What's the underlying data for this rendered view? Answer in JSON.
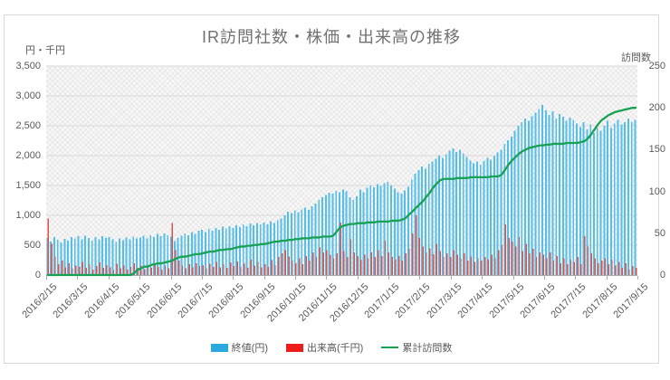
{
  "title": "IR訪問社数・株価・出来高の推移",
  "left_axis": {
    "label": "円・千円",
    "ticks": [
      "0",
      "500",
      "1,000",
      "1,500",
      "2,000",
      "2,500",
      "3,000",
      "3,500"
    ],
    "min": 0,
    "max": 3500,
    "step": 500
  },
  "right_axis": {
    "label": "訪問数",
    "ticks": [
      "0",
      "50",
      "100",
      "150",
      "200",
      "250"
    ],
    "min": 0,
    "max": 250,
    "step": 50
  },
  "legend": {
    "items": [
      {
        "label": "終値(円)",
        "color": "#2aa9e0",
        "type": "bar"
      },
      {
        "label": "出来高(千円)",
        "color": "#ee1c1c",
        "type": "bar"
      },
      {
        "label": "累計訪問数",
        "color": "#17a253",
        "type": "line"
      }
    ]
  },
  "colors": {
    "close_bar": "#55bee9",
    "volume_bar": "#d9534e",
    "visits_line": "#17a253",
    "gridline": "#d9d9d9",
    "axis_text": "#595959",
    "title_text": "#717171"
  },
  "chart_data": {
    "type": "combo",
    "title": "IR訪問社数・株価・出来高の推移",
    "x_tick_labels": [
      "2016/2/15",
      "2016/3/15",
      "2016/4/15",
      "2016/5/15",
      "2016/6/15",
      "2016/7/15",
      "2016/8/15",
      "2016/9/15",
      "2016/10/15",
      "2016/11/15",
      "2016/12/15",
      "2017/1/15",
      "2017/2/15",
      "2017/3/15",
      "2017/4/15",
      "2017/5/15",
      "2017/6/15",
      "2017/7/15",
      "2017/8/15",
      "2017/9/15"
    ],
    "left_range": [
      0,
      3500
    ],
    "right_range": [
      0,
      250
    ],
    "grid": "horizontal-major-left-axis",
    "legend_position": "bottom",
    "series": [
      {
        "name": "終値(円)",
        "type": "bar",
        "axis": "left",
        "values": [
          620,
          560,
          640,
          590,
          545,
          605,
          575,
          640,
          615,
          650,
          600,
          660,
          620,
          575,
          635,
          600,
          655,
          625,
          640,
          595,
          555,
          610,
          580,
          630,
          600,
          645,
          615,
          630,
          660,
          615,
          670,
          640,
          690,
          655,
          700,
          670,
          645,
          565,
          625,
          660,
          700,
          665,
          720,
          690,
          740,
          760,
          720,
          775,
          745,
          790,
          760,
          810,
          780,
          820,
          790,
          830,
          805,
          850,
          820,
          860,
          835,
          875,
          845,
          880,
          850,
          900,
          870,
          920,
          950,
          1000,
          1060,
          1040,
          1080,
          1050,
          1100,
          1130,
          1090,
          1150,
          1200,
          1260,
          1300,
          1340,
          1380,
          1360,
          1410,
          1390,
          1430,
          1400,
          1300,
          1260,
          1320,
          1430,
          1390,
          1460,
          1500,
          1470,
          1520,
          1490,
          1540,
          1560,
          1500,
          1450,
          1390,
          1360,
          1420,
          1480,
          1600,
          1700,
          1760,
          1820,
          1780,
          1860,
          1900,
          1950,
          2000,
          1960,
          2020,
          2080,
          2120,
          2060,
          2100,
          2040,
          1980,
          1920,
          1870,
          1900,
          1850,
          1910,
          1960,
          1930,
          1990,
          2050,
          2100,
          2200,
          2260,
          2320,
          2420,
          2500,
          2560,
          2620,
          2580,
          2660,
          2720,
          2780,
          2850,
          2760,
          2680,
          2740,
          2620,
          2700,
          2650,
          2580,
          2640,
          2600,
          2540,
          2480,
          2560,
          2440,
          2520,
          2380,
          2460,
          2420,
          2500,
          2580,
          2460,
          2540,
          2600,
          2520,
          2560,
          2620,
          2560,
          2600
        ]
      },
      {
        "name": "出来高(千円)",
        "type": "bar",
        "axis": "left",
        "values": [
          950,
          520,
          310,
          180,
          240,
          130,
          200,
          110,
          160,
          140,
          220,
          120,
          180,
          90,
          150,
          210,
          120,
          170,
          130,
          80,
          190,
          110,
          160,
          90,
          140,
          200,
          120,
          160,
          100,
          170,
          120,
          200,
          140,
          90,
          160,
          110,
          870,
          420,
          240,
          160,
          110,
          180,
          130,
          200,
          150,
          170,
          110,
          190,
          140,
          220,
          130,
          180,
          120,
          210,
          150,
          230,
          140,
          190,
          120,
          260,
          160,
          220,
          130,
          180,
          140,
          250,
          170,
          300,
          360,
          420,
          310,
          240,
          200,
          280,
          180,
          320,
          240,
          380,
          300,
          460,
          380,
          420,
          340,
          280,
          360,
          880,
          400,
          300,
          600,
          380,
          320,
          260,
          340,
          280,
          380,
          300,
          420,
          320,
          575,
          380,
          300,
          260,
          320,
          240,
          360,
          440,
          700,
          1000,
          620,
          480,
          380,
          450,
          350,
          520,
          400,
          300,
          360,
          300,
          420,
          340,
          280,
          360,
          240,
          310,
          220,
          280,
          240,
          300,
          260,
          340,
          280,
          420,
          500,
          850,
          620,
          560,
          480,
          640,
          400,
          520,
          360,
          440,
          300,
          380,
          340,
          280,
          380,
          240,
          320,
          200,
          280,
          180,
          260,
          220,
          300,
          180,
          650,
          480,
          360,
          280,
          200,
          240,
          280,
          180,
          260,
          160,
          220,
          120,
          200,
          90,
          150,
          120
        ]
      },
      {
        "name": "累計訪問数",
        "type": "line",
        "axis": "right",
        "values": [
          0,
          0,
          0,
          0,
          0,
          0,
          0,
          0,
          0,
          0,
          0,
          0,
          0,
          0,
          0,
          0,
          0,
          0,
          0,
          0,
          0,
          0,
          0,
          0,
          0,
          2,
          6,
          8,
          10,
          10,
          12,
          13,
          14,
          14,
          15,
          16,
          17,
          19,
          21,
          22,
          22,
          23,
          24,
          25,
          25,
          26,
          27,
          28,
          28,
          29,
          30,
          30,
          31,
          31,
          32,
          33,
          34,
          34,
          35,
          35,
          36,
          36,
          37,
          37,
          38,
          39,
          40,
          40,
          41,
          41,
          42,
          42,
          43,
          43,
          44,
          44,
          44,
          45,
          45,
          45,
          46,
          46,
          46,
          47,
          52,
          57,
          59,
          60,
          61,
          61,
          62,
          62,
          62,
          63,
          63,
          63,
          64,
          64,
          64,
          64,
          65,
          65,
          65,
          66,
          68,
          72,
          76,
          80,
          84,
          88,
          93,
          98,
          104,
          109,
          113,
          115,
          115,
          115,
          115,
          116,
          116,
          116,
          116,
          117,
          117,
          117,
          117,
          117,
          117,
          118,
          118,
          118,
          120,
          126,
          132,
          137,
          141,
          145,
          148,
          150,
          152,
          153,
          154,
          155,
          155,
          156,
          156,
          157,
          157,
          157,
          157,
          158,
          158,
          158,
          158,
          159,
          160,
          163,
          168,
          174,
          180,
          185,
          188,
          191,
          193,
          195,
          196,
          197,
          198,
          199,
          200,
          200
        ]
      }
    ]
  }
}
